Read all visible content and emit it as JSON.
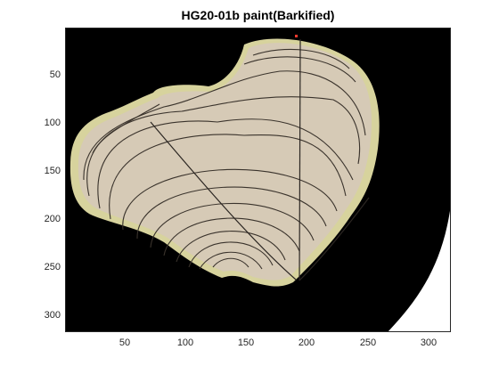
{
  "figure": {
    "title": "HG20-01b paint(Barkified)",
    "x_ticks": [
      "50",
      "100",
      "150",
      "200",
      "250",
      "300"
    ],
    "y_ticks": [
      "50",
      "100",
      "150",
      "200",
      "250",
      "300"
    ],
    "colors": {
      "background": "#000000",
      "wood": "#d8cdb9",
      "bark": "#d7d39d",
      "rings": "#2f2a25",
      "outside": "#ffffff",
      "marker": "#ff3b2f"
    }
  }
}
